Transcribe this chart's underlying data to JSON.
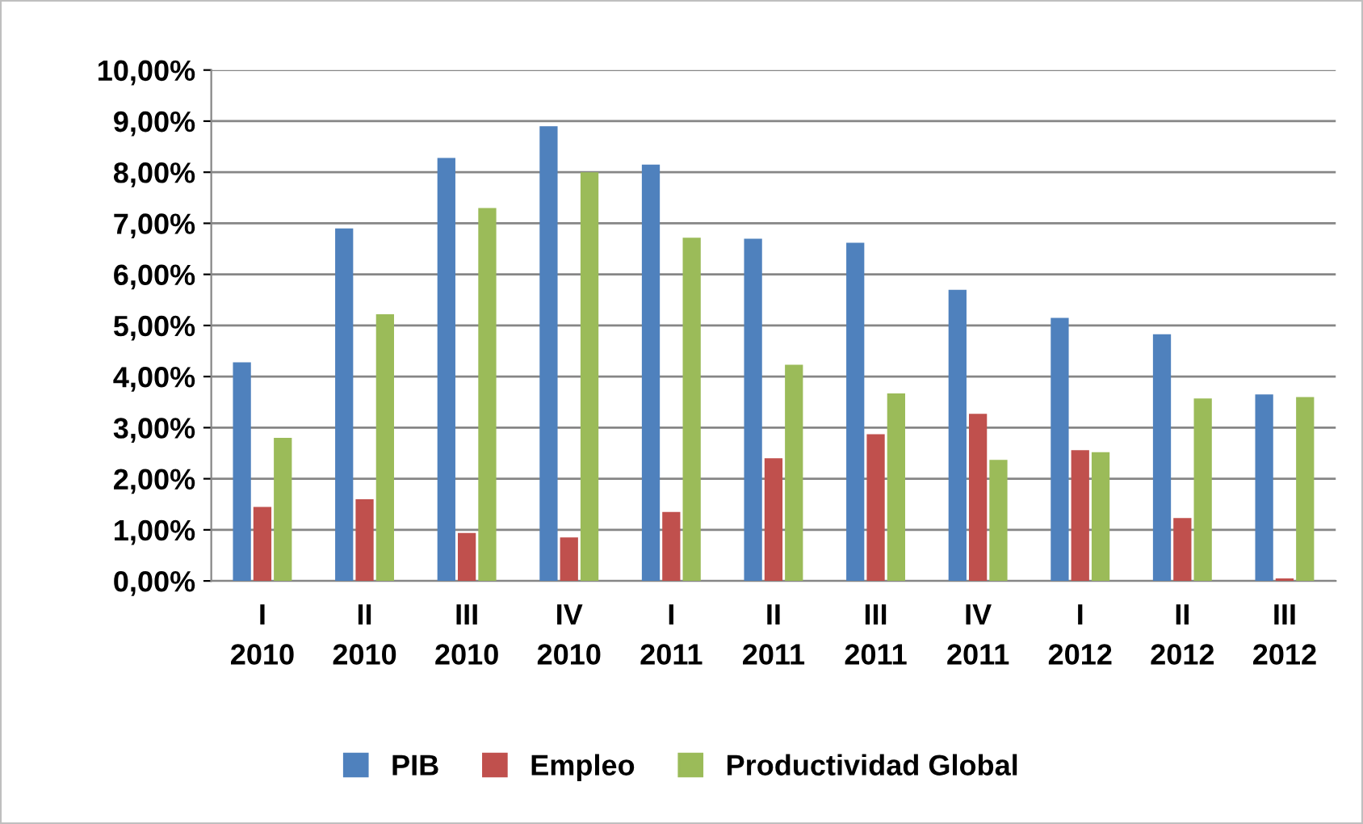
{
  "chart_data": {
    "type": "bar",
    "categories": [
      "I\n2010",
      "II\n2010",
      "III\n2010",
      "IV\n2010",
      "I\n2011",
      "II\n2011",
      "III\n2011",
      "IV\n2011",
      "I\n2012",
      "II\n2012",
      "III\n2012"
    ],
    "series": [
      {
        "name": "PIB",
        "color": "#4f81bd",
        "values": [
          4.28,
          6.9,
          8.28,
          8.9,
          8.15,
          6.7,
          6.62,
          5.7,
          5.15,
          4.83,
          3.65
        ]
      },
      {
        "name": "Empleo",
        "color": "#c0504d",
        "values": [
          1.45,
          1.6,
          0.94,
          0.85,
          1.35,
          2.4,
          2.87,
          3.27,
          2.56,
          1.23,
          0.05
        ]
      },
      {
        "name": "Productividad Global",
        "color": "#9bbb59",
        "values": [
          2.8,
          5.22,
          7.3,
          8.0,
          6.72,
          4.23,
          3.67,
          2.37,
          2.52,
          3.57,
          3.6
        ]
      }
    ],
    "ylim": [
      0,
      10
    ],
    "yticks": [
      {
        "value": 0,
        "label": "0,00%"
      },
      {
        "value": 1,
        "label": "1,00%"
      },
      {
        "value": 2,
        "label": "2,00%"
      },
      {
        "value": 3,
        "label": "3,00%"
      },
      {
        "value": 4,
        "label": "4,00%"
      },
      {
        "value": 5,
        "label": "5,00%"
      },
      {
        "value": 6,
        "label": "6,00%"
      },
      {
        "value": 7,
        "label": "7,00%"
      },
      {
        "value": 8,
        "label": "8,00%"
      },
      {
        "value": 9,
        "label": "9,00%"
      },
      {
        "value": 10,
        "label": "10,00%"
      }
    ],
    "grid": "y",
    "legend": "bottom"
  }
}
